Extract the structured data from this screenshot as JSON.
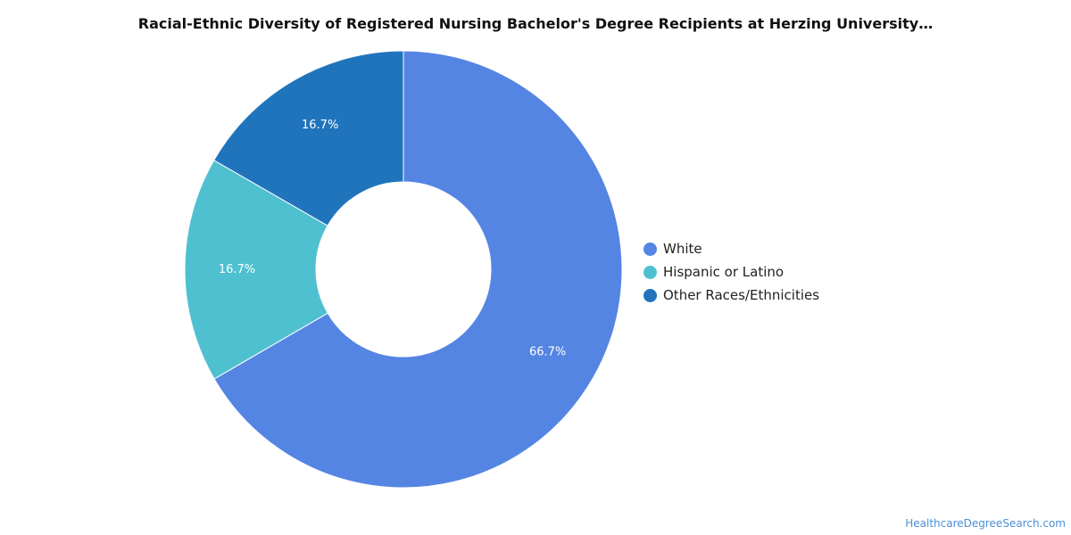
{
  "chart_data": {
    "type": "pie",
    "title": "Racial-Ethnic Diversity of Registered Nursing Bachelor's Degree Recipients at Herzing University…",
    "donut": true,
    "legend_position": "right",
    "start_angle_deg": 0,
    "direction": "clockwise",
    "slices": [
      {
        "label": "White",
        "value": 66.7,
        "display": "66.7%",
        "color": "#5585e3"
      },
      {
        "label": "Hispanic or Latino",
        "value": 16.7,
        "display": "16.7%",
        "color": "#4fc0cf"
      },
      {
        "label": "Other Races/Ethnicities",
        "value": 16.7,
        "display": "16.7%",
        "color": "#2074bc"
      }
    ]
  },
  "footer": {
    "source": "HealthcareDegreeSearch.com"
  }
}
